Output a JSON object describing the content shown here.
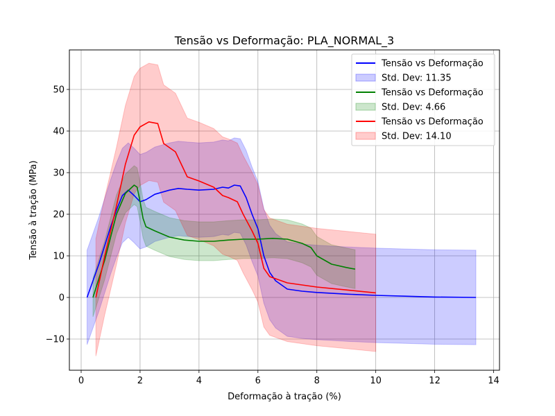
{
  "chart_data": {
    "type": "line",
    "title": "Tensão vs Deformação: PLA_NORMAL_3",
    "xlabel": "Deformação à tração (%)",
    "ylabel": "Tensão à tração (MPa)",
    "xlim": [
      -0.4,
      14.2
    ],
    "ylim": [
      -17.5,
      59.5
    ],
    "xticks": [
      0,
      2,
      4,
      6,
      8,
      10,
      12,
      14
    ],
    "yticks": [
      -10,
      0,
      10,
      20,
      30,
      40,
      50
    ],
    "grid": true,
    "legend_position": "top-right",
    "series": [
      {
        "name": "Tensão vs Deformação",
        "band_name": "Std. Dev: 11.35",
        "std_dev": 11.35,
        "color": "#0000ff",
        "x": [
          0.2,
          0.6,
          1.0,
          1.2,
          1.4,
          1.6,
          1.8,
          2.0,
          2.2,
          2.5,
          3.0,
          3.3,
          3.6,
          4.0,
          4.5,
          4.8,
          5.0,
          5.2,
          5.4,
          5.6,
          5.8,
          6.0,
          6.2,
          6.4,
          6.6,
          6.8,
          7.0,
          7.5,
          8.0,
          9.0,
          10.0,
          11.0,
          12.0,
          13.4
        ],
        "y": [
          0,
          8,
          17,
          21,
          24.5,
          25.8,
          24.5,
          23,
          23.5,
          24.8,
          25.8,
          26.2,
          26,
          25.8,
          26,
          26.5,
          26.3,
          27,
          26.8,
          24,
          20,
          16.5,
          10,
          6,
          4,
          3,
          2,
          1.5,
          1.2,
          0.8,
          0.5,
          0.3,
          0.1,
          0
        ]
      },
      {
        "name": "Tensão vs Deformação",
        "band_name": "Std. Dev: 4.66",
        "std_dev": 4.66,
        "color": "#008000",
        "x": [
          0.4,
          0.8,
          1.2,
          1.5,
          1.8,
          1.9,
          2.0,
          2.1,
          2.2,
          2.5,
          3.0,
          3.5,
          4.0,
          4.5,
          5.0,
          5.5,
          6.0,
          6.5,
          7.0,
          7.5,
          7.8,
          8.0,
          8.5,
          9.0,
          9.3
        ],
        "y": [
          0,
          9,
          20,
          25,
          27,
          26.5,
          23,
          19,
          17,
          16,
          14.5,
          13.8,
          13.5,
          13.5,
          13.8,
          14,
          14,
          14.2,
          14,
          13,
          12,
          10,
          8,
          7.2,
          6.8
        ]
      },
      {
        "name": "Tensão vs Deformação",
        "band_name": "Std. Dev: 14.10",
        "std_dev": 14.1,
        "color": "#ff0000",
        "x": [
          0.5,
          0.8,
          1.0,
          1.2,
          1.5,
          1.8,
          2.0,
          2.3,
          2.6,
          2.8,
          3.0,
          3.2,
          3.4,
          3.6,
          4.0,
          4.5,
          4.8,
          5.0,
          5.3,
          5.5,
          5.8,
          6.0,
          6.2,
          6.4,
          6.6,
          7.0,
          8.0,
          9.0,
          10.0
        ],
        "y": [
          0,
          10,
          16,
          22,
          32,
          39,
          41,
          42.2,
          41.8,
          37,
          36,
          35,
          32,
          29,
          28,
          26.5,
          24.5,
          24,
          23,
          20,
          16,
          13,
          7,
          5,
          4.5,
          3.5,
          2.5,
          1.8,
          1.1
        ]
      }
    ]
  }
}
